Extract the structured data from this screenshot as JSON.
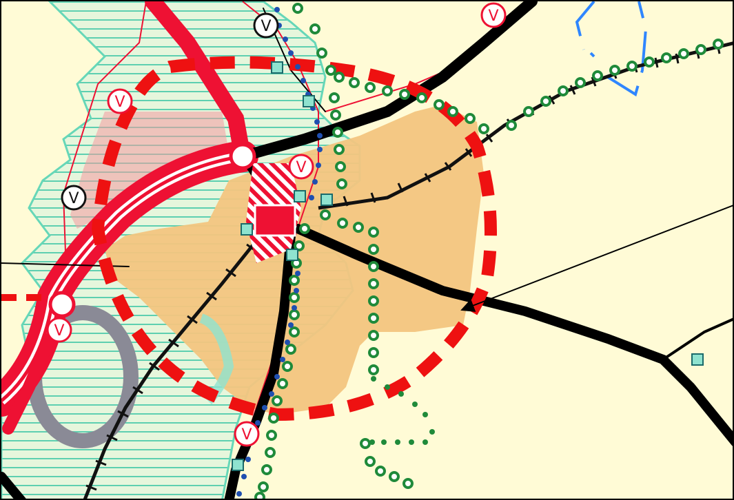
{
  "map": {
    "colors": {
      "background": "#fffbd6",
      "hatch_area": "#66d7b8",
      "hatch_fill": "#e6f6dc",
      "settlement": "#f3c57f",
      "highway": "#ee1133",
      "radius_circle": "#ee1111",
      "railway": "#111111",
      "main_road": "#000000",
      "pink_zone": "#f59aa0",
      "teal_symbol": "#8fe3cf",
      "green_trail": "#1f8a3a",
      "blue_dots": "#1f4fb0",
      "water": "#2f86ff",
      "gray_ring": "#8a8a96",
      "station_building": "#ee1133"
    },
    "symbols": {
      "route_marker_letter": "V",
      "icons": [
        "route-v-marker-icon",
        "junction-circle-icon",
        "station-building-icon",
        "teal-square-icon"
      ]
    }
  }
}
